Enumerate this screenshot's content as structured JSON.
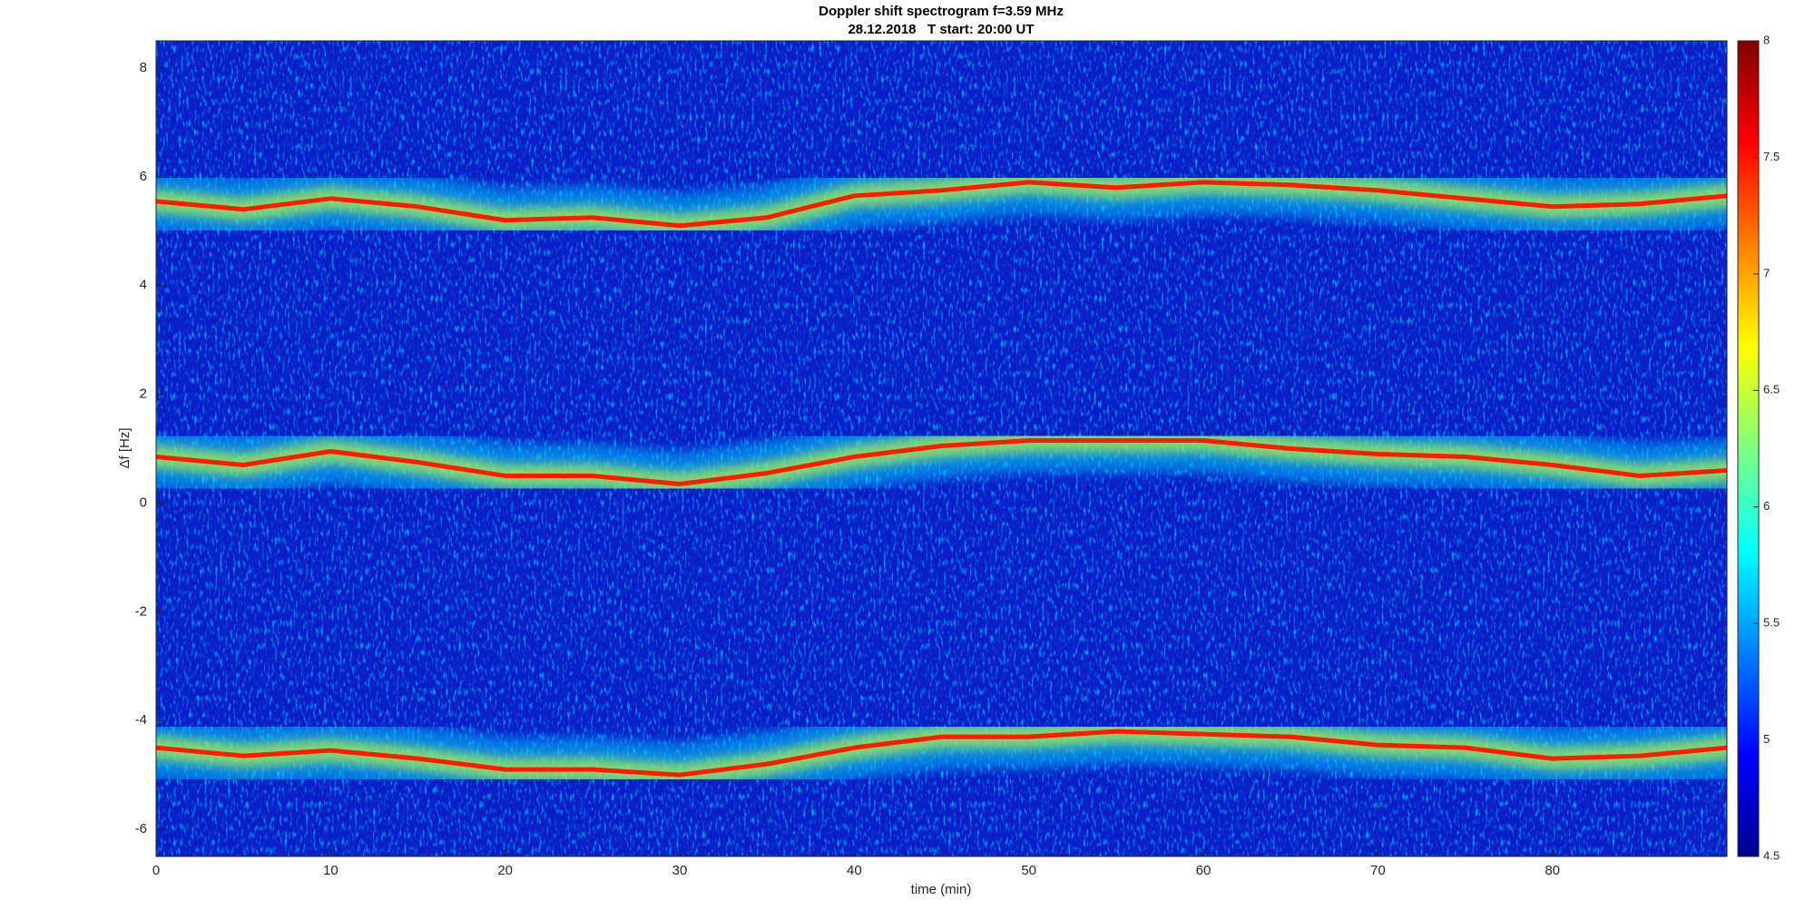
{
  "chart_data": {
    "type": "spectrogram",
    "title": "Doppler shift spectrogram f=3.59 MHz",
    "subtitle": "28.12.2018   T start: 20:00 UT",
    "xlabel": "time (min)",
    "ylabel": "Δf [Hz]",
    "xlim": [
      0,
      90
    ],
    "xticks": [
      0,
      10,
      20,
      30,
      40,
      50,
      60,
      70,
      80
    ],
    "ylim": [
      -6.5,
      8.5
    ],
    "yticks": [
      -6,
      -4,
      -2,
      0,
      2,
      4,
      6,
      8
    ],
    "clim": [
      4.5,
      8
    ],
    "cticks": [
      4.5,
      5,
      5.5,
      6,
      6.5,
      7,
      7.5,
      8
    ],
    "x": [
      0,
      5,
      10,
      15,
      20,
      25,
      30,
      35,
      40,
      45,
      50,
      55,
      60,
      65,
      70,
      75,
      80,
      85,
      90
    ],
    "series": [
      {
        "color": "#ff1a00",
        "values": [
          5.55,
          5.4,
          5.6,
          5.45,
          5.2,
          5.25,
          5.1,
          5.25,
          5.65,
          5.75,
          5.9,
          5.8,
          5.9,
          5.85,
          5.75,
          5.6,
          5.45,
          5.5,
          5.65
        ]
      },
      {
        "color": "#ff1a00",
        "values": [
          0.85,
          0.7,
          0.95,
          0.75,
          0.5,
          0.5,
          0.35,
          0.55,
          0.85,
          1.05,
          1.15,
          1.15,
          1.15,
          1.0,
          0.9,
          0.85,
          0.7,
          0.5,
          0.6
        ]
      },
      {
        "color": "#ff1a00",
        "values": [
          -4.5,
          -4.65,
          -4.55,
          -4.7,
          -4.9,
          -4.9,
          -5.0,
          -4.8,
          -4.5,
          -4.3,
          -4.3,
          -4.2,
          -4.25,
          -4.3,
          -4.45,
          -4.5,
          -4.7,
          -4.65,
          -4.5
        ]
      }
    ]
  }
}
